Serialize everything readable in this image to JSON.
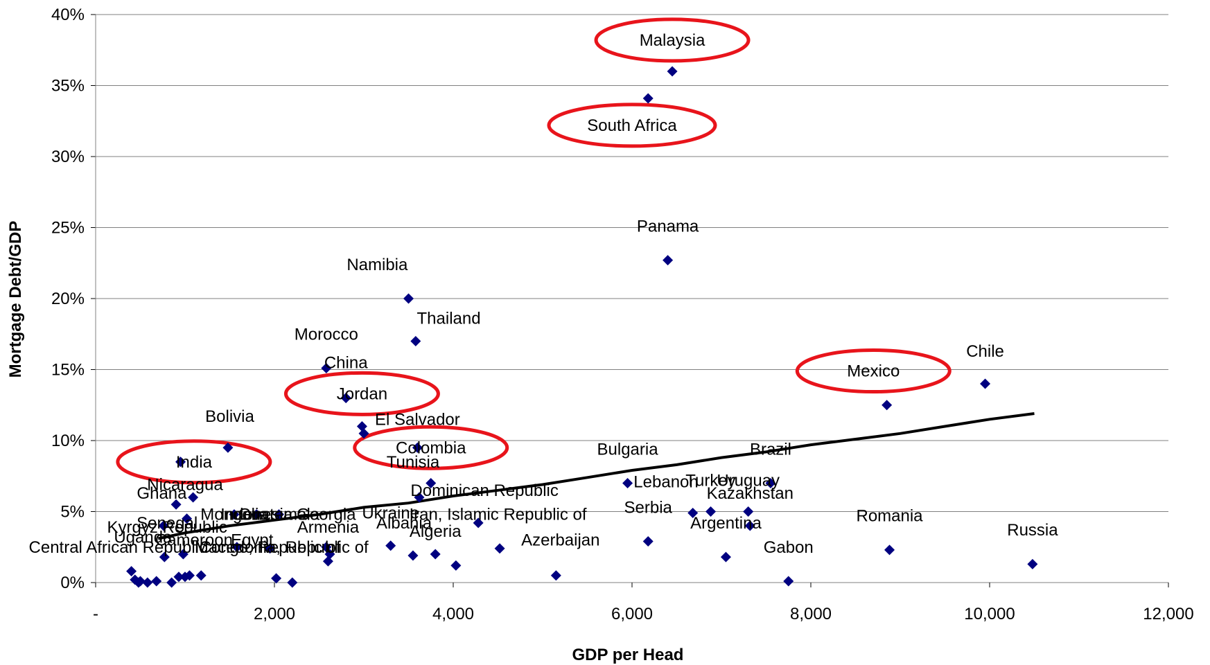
{
  "chart_data": {
    "type": "scatter",
    "title": "",
    "xlabel": "GDP per Head",
    "ylabel": "Mortgage Debt/GDP",
    "xlim": [
      0,
      12000
    ],
    "ylim": [
      0,
      40
    ],
    "x_ticks": [
      {
        "value": 0,
        "label": "-"
      },
      {
        "value": 2000,
        "label": "2,000"
      },
      {
        "value": 4000,
        "label": "4,000"
      },
      {
        "value": 6000,
        "label": "6,000"
      },
      {
        "value": 8000,
        "label": "8,000"
      },
      {
        "value": 10000,
        "label": "10,000"
      },
      {
        "value": 12000,
        "label": "12,000"
      }
    ],
    "y_ticks": [
      {
        "value": 0,
        "label": "0%"
      },
      {
        "value": 5,
        "label": "5%"
      },
      {
        "value": 10,
        "label": "10%"
      },
      {
        "value": 15,
        "label": "15%"
      },
      {
        "value": 20,
        "label": "20%"
      },
      {
        "value": 25,
        "label": "25%"
      },
      {
        "value": 30,
        "label": "30%"
      },
      {
        "value": 35,
        "label": "35%"
      },
      {
        "value": 40,
        "label": "40%"
      }
    ],
    "grid": "horizontal",
    "marker_color": "#000080",
    "trend_color": "#000000",
    "highlight_color": "#e8141b",
    "points": [
      {
        "x": 6450,
        "y": 36,
        "label": "Malaysia",
        "lx": 6450,
        "ly": 38.2,
        "circled": true
      },
      {
        "x": 6180,
        "y": 34.1,
        "label": "South Africa",
        "lx": 6000,
        "ly": 32.2,
        "circled": true
      },
      {
        "x": 6400,
        "y": 22.7,
        "label": "Panama",
        "lx": 6400,
        "ly": 25.1
      },
      {
        "x": 3500,
        "y": 20,
        "label": "Namibia",
        "lx": 3150,
        "ly": 22.4
      },
      {
        "x": 3580,
        "y": 17,
        "label": "Thailand",
        "lx": 3950,
        "ly": 18.6
      },
      {
        "x": 2580,
        "y": 15.1,
        "label": "Morocco",
        "lx": 2580,
        "ly": 17.5
      },
      {
        "x": 2800,
        "y": 13,
        "label": "China",
        "lx": 2800,
        "ly": 15.5
      },
      {
        "x": 2800,
        "y": 13,
        "label": "Jordan",
        "lx": 2980,
        "ly": 13.3,
        "circled": true
      },
      {
        "x": 2980,
        "y": 11,
        "label": "El Salvador",
        "lx": 3600,
        "ly": 11.5
      },
      {
        "x": 3000,
        "y": 10.5,
        "label": "",
        "lx": 0,
        "ly": 0
      },
      {
        "x": 1480,
        "y": 9.5,
        "label": "Bolivia",
        "lx": 1500,
        "ly": 11.7
      },
      {
        "x": 3600,
        "y": 9.5,
        "label": "Colombia",
        "lx": 3750,
        "ly": 9.5,
        "circled": true
      },
      {
        "x": 3750,
        "y": 7,
        "label": "Tunisia",
        "lx": 3550,
        "ly": 8.5
      },
      {
        "x": 3620,
        "y": 6,
        "label": "Dominican Republic",
        "lx": 4350,
        "ly": 6.5
      },
      {
        "x": 950,
        "y": 8.5,
        "label": "India",
        "lx": 1100,
        "ly": 8.5,
        "circled": true
      },
      {
        "x": 1090,
        "y": 6,
        "label": "Nicaragua",
        "lx": 1000,
        "ly": 6.9
      },
      {
        "x": 900,
        "y": 5.5,
        "label": "Ghana",
        "lx": 740,
        "ly": 6.3
      },
      {
        "x": 5950,
        "y": 7,
        "label": "Bulgaria",
        "lx": 5950,
        "ly": 9.4
      },
      {
        "x": 7550,
        "y": 7,
        "label": "Brazil",
        "lx": 7550,
        "ly": 9.4
      },
      {
        "x": 6680,
        "y": 4.9,
        "label": "Lebanon",
        "lx": 6380,
        "ly": 7.1
      },
      {
        "x": 6880,
        "y": 5,
        "label": "Turkey",
        "lx": 6880,
        "ly": 7.2
      },
      {
        "x": 7300,
        "y": 5,
        "label": "Uruguay",
        "lx": 7300,
        "ly": 7.2
      },
      {
        "x": 7320,
        "y": 4,
        "label": "Kazakhstan",
        "lx": 7320,
        "ly": 6.3
      },
      {
        "x": 6180,
        "y": 2.9,
        "label": "Serbia",
        "lx": 6180,
        "ly": 5.3
      },
      {
        "x": 7050,
        "y": 1.8,
        "label": "Argentina",
        "lx": 7050,
        "ly": 4.2
      },
      {
        "x": 7750,
        "y": 0.1,
        "label": "Gabon",
        "lx": 7750,
        "ly": 2.5
      },
      {
        "x": 8850,
        "y": 12.5,
        "label": "Mexico",
        "lx": 8700,
        "ly": 14.9,
        "circled": true
      },
      {
        "x": 9950,
        "y": 14,
        "label": "Chile",
        "lx": 9950,
        "ly": 16.3
      },
      {
        "x": 8880,
        "y": 2.3,
        "label": "Romania",
        "lx": 8880,
        "ly": 4.7
      },
      {
        "x": 10480,
        "y": 1.3,
        "label": "Russia",
        "lx": 10480,
        "ly": 3.7
      },
      {
        "x": 4280,
        "y": 4.2,
        "label": "Iran, Islamic Republic of",
        "lx": 4500,
        "ly": 4.8
      },
      {
        "x": 3800,
        "y": 2,
        "label": "Algeria",
        "lx": 3800,
        "ly": 3.6
      },
      {
        "x": 4520,
        "y": 2.4,
        "label": "Azerbaijan",
        "lx": 5200,
        "ly": 3
      },
      {
        "x": 3550,
        "y": 1.9,
        "label": "Albania",
        "lx": 3450,
        "ly": 4.2
      },
      {
        "x": 3300,
        "y": 2.6,
        "label": "Ukraine",
        "lx": 3300,
        "ly": 4.9
      },
      {
        "x": 2600,
        "y": 1.5,
        "label": "Armenia",
        "lx": 2600,
        "ly": 3.9
      },
      {
        "x": 2580,
        "y": 2.5,
        "label": "Georgia",
        "lx": 2580,
        "ly": 4.8
      },
      {
        "x": 2620,
        "y": 2,
        "label": "Macedonia, Republic of",
        "lx": 2080,
        "ly": 2.5
      },
      {
        "x": 1950,
        "y": 2.4,
        "label": "Congo, Republic of",
        "lx": 1950,
        "ly": 2.5
      },
      {
        "x": 1580,
        "y": 2.5,
        "label": "Egypt",
        "lx": 1750,
        "ly": 3
      },
      {
        "x": 1550,
        "y": 4.8,
        "label": "Mongolia",
        "lx": 1550,
        "ly": 4.8
      },
      {
        "x": 1800,
        "y": 4.8,
        "label": "Indonesia",
        "lx": 1800,
        "ly": 4.8
      },
      {
        "x": 2050,
        "y": 4.8,
        "label": "Guatemala",
        "lx": 2050,
        "ly": 4.8
      },
      {
        "x": 1020,
        "y": 4.5,
        "label": "Senegal",
        "lx": 800,
        "ly": 4.2
      },
      {
        "x": 760,
        "y": 4,
        "label": "Kyrgyz Republic",
        "lx": 800,
        "ly": 3.9
      },
      {
        "x": 770,
        "y": 1.8,
        "label": "Uganda",
        "lx": 530,
        "ly": 3.2
      },
      {
        "x": 980,
        "y": 2,
        "label": "Cameroon",
        "lx": 1100,
        "ly": 3
      },
      {
        "x": 1000,
        "y": 0.4,
        "label": "Central African Republic",
        "lx": 250,
        "ly": 2.5
      },
      {
        "x": 1050,
        "y": 0.5,
        "label": "",
        "lx": 0,
        "ly": 0
      },
      {
        "x": 1180,
        "y": 0.5,
        "label": "",
        "lx": 0,
        "ly": 0
      },
      {
        "x": 2020,
        "y": 0.3,
        "label": "",
        "lx": 0,
        "ly": 0
      },
      {
        "x": 2200,
        "y": 0,
        "label": "",
        "lx": 0,
        "ly": 0
      },
      {
        "x": 4030,
        "y": 1.2,
        "label": "",
        "lx": 0,
        "ly": 0
      },
      {
        "x": 5150,
        "y": 0.5,
        "label": "",
        "lx": 0,
        "ly": 0
      },
      {
        "x": 400,
        "y": 0.8,
        "label": "",
        "lx": 0,
        "ly": 0
      },
      {
        "x": 440,
        "y": 0.2,
        "label": "",
        "lx": 0,
        "ly": 0
      },
      {
        "x": 480,
        "y": 0,
        "label": "",
        "lx": 0,
        "ly": 0
      },
      {
        "x": 500,
        "y": 0.1,
        "label": "",
        "lx": 0,
        "ly": 0
      },
      {
        "x": 580,
        "y": 0,
        "label": "",
        "lx": 0,
        "ly": 0
      },
      {
        "x": 680,
        "y": 0.1,
        "label": "",
        "lx": 0,
        "ly": 0
      },
      {
        "x": 850,
        "y": 0,
        "label": "",
        "lx": 0,
        "ly": 0
      },
      {
        "x": 930,
        "y": 0.4,
        "label": "",
        "lx": 0,
        "ly": 0
      }
    ],
    "trend_line": [
      [
        700,
        3.1
      ],
      [
        1000,
        3.5
      ],
      [
        1500,
        4.0
      ],
      [
        2000,
        4.4
      ],
      [
        2500,
        4.8
      ],
      [
        3000,
        5.3
      ],
      [
        3500,
        5.6
      ],
      [
        4000,
        6.1
      ],
      [
        4500,
        6.5
      ],
      [
        5000,
        6.9
      ],
      [
        5500,
        7.4
      ],
      [
        6000,
        7.9
      ],
      [
        6500,
        8.3
      ],
      [
        7000,
        8.8
      ],
      [
        7500,
        9.2
      ],
      [
        8000,
        9.7
      ],
      [
        8500,
        10.1
      ],
      [
        9000,
        10.5
      ],
      [
        9500,
        11.0
      ],
      [
        10000,
        11.5
      ],
      [
        10500,
        11.9
      ]
    ]
  }
}
